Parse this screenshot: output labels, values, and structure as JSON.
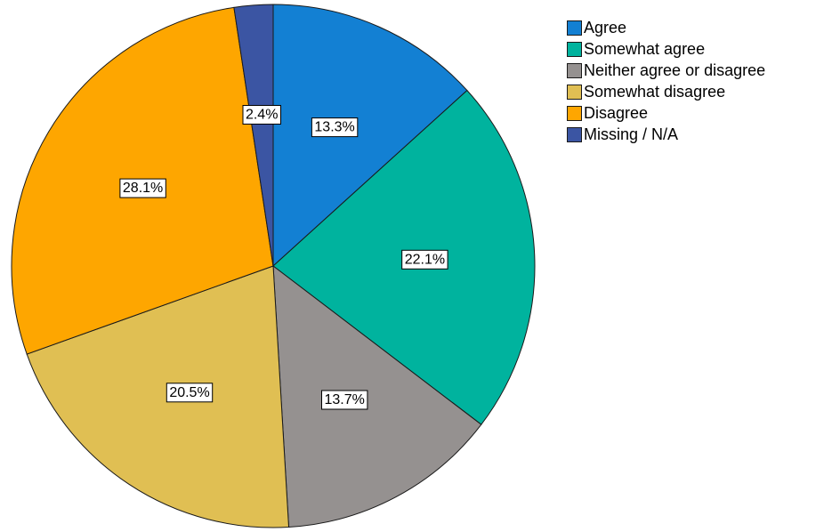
{
  "chart_data": {
    "type": "pie",
    "start_angle_deg": 0,
    "direction": "clockwise",
    "legend_position": "top-right",
    "slices": [
      {
        "label": "Agree",
        "value": 13.3,
        "value_label": "13.3%",
        "color": "#1380d3"
      },
      {
        "label": "Somewhat agree",
        "value": 22.1,
        "value_label": "22.1%",
        "color": "#00b39e"
      },
      {
        "label": "Neither agree or disagree",
        "value": 13.7,
        "value_label": "13.7%",
        "color": "#959190"
      },
      {
        "label": "Somewhat disagree",
        "value": 20.5,
        "value_label": "20.5%",
        "color": "#e0bf53"
      },
      {
        "label": "Disagree",
        "value": 28.1,
        "value_label": "28.1%",
        "color": "#fea600"
      },
      {
        "label": "Missing / N/A",
        "value": 2.4,
        "value_label": "2.4%",
        "color": "#3b55a3"
      }
    ]
  }
}
